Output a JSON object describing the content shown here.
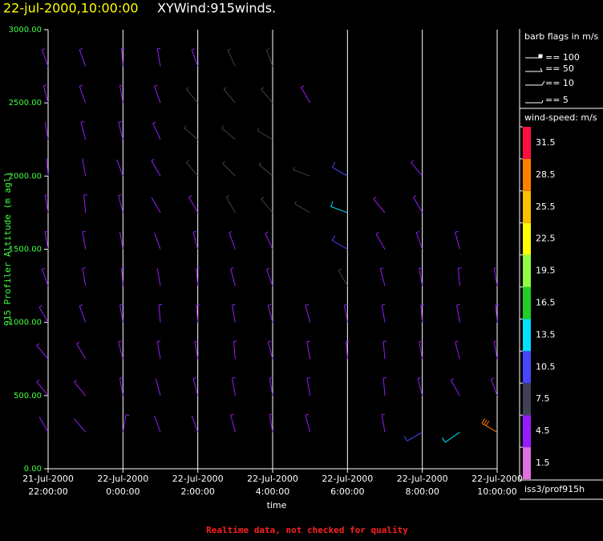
{
  "chart_data": {
    "type": "windbarb",
    "title": "22-jul-2000,10:00:00",
    "subtitle": "XYWind:915winds.",
    "ylabel": "915 Profiler Altitude (m agl)",
    "xlabel": "time",
    "footer": "Realtime data, not checked for quality",
    "station": "iss3/prof915h",
    "flag_legend": {
      "title": "barb flags in m/s",
      "items": [
        "== 100",
        "== 50",
        "== 10",
        "== 5"
      ]
    },
    "colorbar": {
      "title": "wind-speed: m/s",
      "labels": [
        1.5,
        4.5,
        7.5,
        10.5,
        13.5,
        16.5,
        19.5,
        22.5,
        25.5,
        28.5,
        31.5
      ],
      "colors": [
        "#e070e0",
        "#9a1aff",
        "#404058",
        "#4646ff",
        "#00e0ff",
        "#20d020",
        "#90ff40",
        "#ffff00",
        "#ffc000",
        "#ff8000",
        "#ff1040"
      ]
    },
    "xlim": [
      "2000-07-21T22:00",
      "2000-07-22T10:00"
    ],
    "xticks": [
      {
        "value": "2000-07-21T22:00",
        "label": [
          "21-Jul-2000",
          "22:00:00"
        ]
      },
      {
        "value": "2000-07-22T00:00",
        "label": [
          "22-Jul-2000",
          "0:00:00"
        ]
      },
      {
        "value": "2000-07-22T02:00",
        "label": [
          "22-Jul-2000",
          "2:00:00"
        ]
      },
      {
        "value": "2000-07-22T04:00",
        "label": [
          "22-Jul-2000",
          "4:00:00"
        ]
      },
      {
        "value": "2000-07-22T06:00",
        "label": [
          "22-Jul-2000",
          "6:00:00"
        ]
      },
      {
        "value": "2000-07-22T08:00",
        "label": [
          "22-Jul-2000",
          "8:00:00"
        ]
      },
      {
        "value": "2000-07-22T10:00",
        "label": [
          "22-Jul-2000",
          "10:00:00"
        ]
      }
    ],
    "ylim": [
      0,
      3000
    ],
    "yticks": [
      {
        "value": 0,
        "label": "0.00"
      },
      {
        "value": 500,
        "label": "500.00"
      },
      {
        "value": 1000,
        "label": "1000.00"
      },
      {
        "value": 1500,
        "label": "1500.00"
      },
      {
        "value": 2000,
        "label": "2000.00"
      },
      {
        "value": 2500,
        "label": "2500.00"
      },
      {
        "value": 3000,
        "label": "3000.00"
      }
    ],
    "levels": [
      250,
      500,
      750,
      1000,
      1250,
      1500,
      1750,
      2000,
      2250,
      2500,
      2750
    ],
    "series": [
      {
        "x": "2000-07-21T22:00",
        "speed": [
          4,
          5,
          5,
          6,
          6,
          5,
          5,
          4,
          4,
          5,
          6
        ],
        "direction": [
          330,
          320,
          320,
          330,
          340,
          350,
          350,
          355,
          350,
          345,
          340
        ]
      },
      {
        "x": "2000-07-21T23:00",
        "speed": [
          4,
          5,
          6,
          6,
          5,
          5,
          5,
          4,
          5,
          5,
          6
        ],
        "direction": [
          320,
          320,
          330,
          340,
          350,
          350,
          355,
          350,
          345,
          340,
          340
        ]
      },
      {
        "x": "2000-07-22T00:00",
        "speed": [
          6,
          5,
          5,
          5,
          5,
          4,
          5,
          4,
          5,
          6,
          5
        ],
        "direction": [
          10,
          350,
          345,
          350,
          355,
          350,
          345,
          340,
          345,
          350,
          355
        ]
      },
      {
        "x": "2000-07-22T01:00",
        "speed": [
          4,
          4,
          5,
          5,
          4,
          4,
          4,
          5,
          6,
          6,
          5
        ],
        "direction": [
          340,
          345,
          350,
          355,
          350,
          340,
          330,
          330,
          335,
          340,
          350
        ]
      },
      {
        "x": "2000-07-22T02:00",
        "speed": [
          4,
          5,
          5,
          5,
          5,
          5,
          6,
          7,
          8,
          7,
          6
        ],
        "direction": [
          340,
          345,
          350,
          355,
          355,
          345,
          330,
          320,
          310,
          320,
          340
        ]
      },
      {
        "x": "2000-07-22T03:00",
        "speed": [
          5,
          5,
          6,
          6,
          6,
          6,
          7,
          9,
          9,
          8,
          7
        ],
        "direction": [
          345,
          350,
          355,
          350,
          345,
          340,
          330,
          315,
          310,
          320,
          335
        ]
      },
      {
        "x": "2000-07-22T04:00",
        "speed": [
          5,
          5,
          5,
          6,
          6,
          6,
          8,
          9,
          9,
          8,
          7
        ],
        "direction": [
          350,
          350,
          345,
          345,
          340,
          335,
          320,
          310,
          300,
          320,
          340
        ]
      },
      {
        "x": "2000-07-22T05:00",
        "speed": [
          5,
          5,
          5,
          5,
          null,
          null,
          8,
          9,
          null,
          6,
          null
        ],
        "direction": [
          345,
          350,
          350,
          345,
          null,
          null,
          300,
          290,
          null,
          330,
          null
        ]
      },
      {
        "x": "2000-07-22T06:00",
        "speed": [
          null,
          null,
          5,
          6,
          9,
          12,
          13,
          10,
          null,
          null,
          null
        ],
        "direction": [
          null,
          null,
          355,
          350,
          330,
          300,
          290,
          300,
          null,
          null,
          null
        ]
      },
      {
        "x": "2000-07-22T07:00",
        "speed": [
          5,
          5,
          5,
          6,
          6,
          5,
          5,
          null,
          null,
          null,
          null
        ],
        "direction": [
          350,
          355,
          355,
          350,
          345,
          330,
          320,
          null,
          null,
          null,
          null
        ]
      },
      {
        "x": "2000-07-22T08:00",
        "speed": [
          12,
          5,
          5,
          6,
          6,
          6,
          5,
          5,
          null,
          null,
          null
        ],
        "direction": [
          240,
          345,
          350,
          355,
          350,
          340,
          330,
          320,
          null,
          null,
          null
        ]
      },
      {
        "x": "2000-07-22T09:00",
        "speed": [
          14,
          6,
          5,
          6,
          6,
          5,
          null,
          null,
          null,
          null,
          null
        ],
        "direction": [
          235,
          330,
          345,
          350,
          355,
          345,
          null,
          null,
          null,
          null,
          null
        ]
      },
      {
        "x": "2000-07-22T10:00",
        "speed": [
          30,
          5,
          5,
          5,
          5,
          null,
          null,
          null,
          null,
          null,
          null
        ],
        "direction": [
          300,
          340,
          350,
          355,
          350,
          null,
          null,
          null,
          null,
          null,
          null
        ]
      }
    ]
  }
}
